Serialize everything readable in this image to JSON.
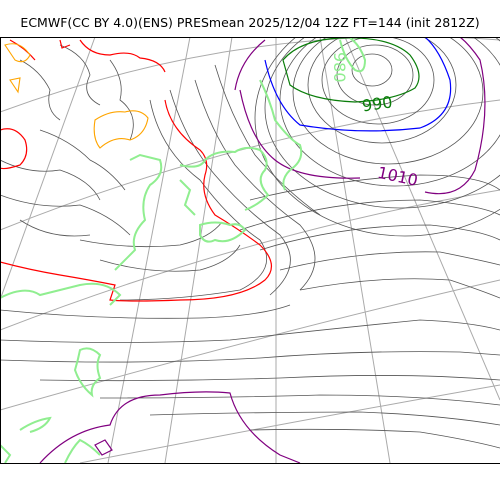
{
  "title": "ECMWF(CC BY 4.0)(ENS) PRESmean 2025/12/04 12Z FT=144 (init 2812Z)",
  "contour_labels": [
    {
      "text": "990",
      "color": "#0a7d0a"
    },
    {
      "text": "1010",
      "color": "#800080"
    },
    {
      "text": "980",
      "color": "#90ee90"
    }
  ],
  "colors": {
    "isobar": "#555555",
    "grid": "#aaaaaa",
    "coastline": "#90ee90",
    "contour_990": "#0a7d0a",
    "contour_1000": "#0000ff",
    "contour_1010": "#800080",
    "contour_1020": "#ff0000",
    "terrain_orange": "#ffa500"
  }
}
